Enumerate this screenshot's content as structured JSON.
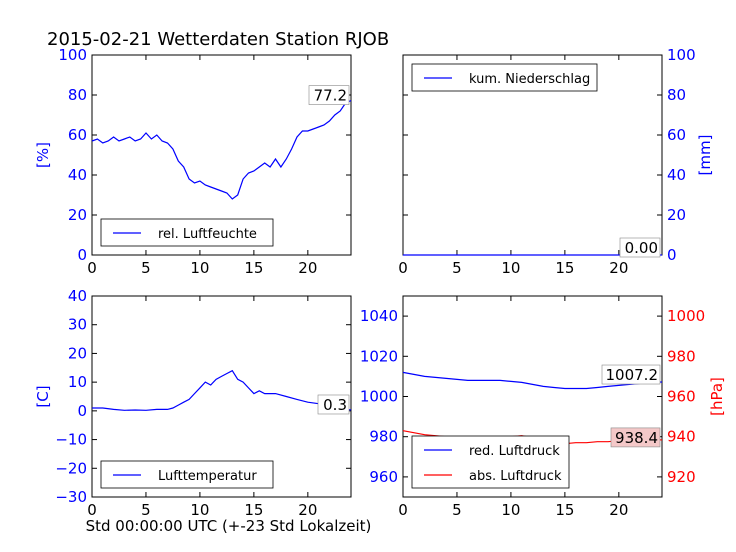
{
  "title": "2015-02-21 Wetterdaten Station RJOB",
  "colors": {
    "blue": "#0000ff",
    "red": "#ff0000",
    "annoBg": "#ffffff",
    "annoBgRed": "#f4c8c8"
  },
  "chart_data": [
    {
      "type": "line",
      "name": "humidity",
      "xlim": [
        0,
        24
      ],
      "ylim": [
        0,
        100
      ],
      "xticks": [
        "0",
        "5",
        "10",
        "15",
        "20"
      ],
      "xtick_values": [
        0,
        5,
        10,
        15,
        20
      ],
      "yticks": [
        "0",
        "20",
        "40",
        "60",
        "80",
        "100"
      ],
      "ytick_values": [
        0,
        20,
        40,
        60,
        80,
        100
      ],
      "ylabel": "[%]",
      "ylabel_side": "left",
      "ytick_color": "#0000ff",
      "legend": "top-none",
      "legend_placement": "lower-left",
      "annotation": "77.2",
      "series": [
        {
          "name": "rel. Luftfeuchte",
          "color": "#0000ff",
          "x": [
            0,
            0.5,
            1,
            1.5,
            2,
            2.5,
            3,
            3.5,
            4,
            4.5,
            5,
            5.5,
            6,
            6.5,
            7,
            7.5,
            8,
            8.5,
            9,
            9.5,
            10,
            10.5,
            11,
            11.5,
            12,
            12.5,
            13,
            13.5,
            14,
            14.5,
            15,
            15.5,
            16,
            16.5,
            17,
            17.5,
            18,
            18.5,
            19,
            19.5,
            20,
            20.5,
            21,
            21.5,
            22,
            22.5,
            23,
            23.5,
            24
          ],
          "y": [
            57,
            58,
            56,
            57,
            59,
            57,
            58,
            59,
            57,
            58,
            61,
            58,
            60,
            57,
            56,
            53,
            47,
            44,
            38,
            36,
            37,
            35,
            34,
            33,
            32,
            31,
            28,
            30,
            38,
            41,
            42,
            44,
            46,
            44,
            48,
            44,
            48,
            53,
            59,
            62,
            62,
            63,
            64,
            65,
            67,
            70,
            72,
            76,
            77.2
          ]
        }
      ]
    },
    {
      "type": "line",
      "name": "precipitation",
      "xlim": [
        0,
        24
      ],
      "ylim": [
        0,
        100
      ],
      "xticks": [
        "0",
        "5",
        "10",
        "15",
        "20"
      ],
      "xtick_values": [
        0,
        5,
        10,
        15,
        20
      ],
      "yticks": [
        "0",
        "20",
        "40",
        "60",
        "80",
        "100"
      ],
      "ytick_values": [
        0,
        20,
        40,
        60,
        80,
        100
      ],
      "ylabel": "[mm]",
      "ylabel_side": "right",
      "ytick_color": "#0000ff",
      "legend_placement": "upper-left",
      "annotation": "0.00",
      "series": [
        {
          "name": "kum. Niederschlag",
          "color": "#0000ff",
          "x": [
            0,
            24
          ],
          "y": [
            0,
            0
          ]
        }
      ]
    },
    {
      "type": "line",
      "name": "temperature",
      "xlim": [
        0,
        24
      ],
      "ylim": [
        -30,
        40
      ],
      "xticks": [
        "0",
        "5",
        "10",
        "15",
        "20"
      ],
      "xtick_values": [
        0,
        5,
        10,
        15,
        20
      ],
      "yticks": [
        "−30",
        "−20",
        "−10",
        "0",
        "10",
        "20",
        "30",
        "40"
      ],
      "ytick_values": [
        -30,
        -20,
        -10,
        0,
        10,
        20,
        30,
        40
      ],
      "ylabel": "[C]",
      "ylabel_side": "left",
      "ytick_color": "#0000ff",
      "xlabel": "Std 00:00:00 UTC (+-23 Std Lokalzeit)",
      "legend_placement": "lower-left",
      "annotation": "0.3",
      "series": [
        {
          "name": "Lufttemperatur",
          "color": "#0000ff",
          "x": [
            0,
            1,
            2,
            3,
            4,
            5,
            6,
            7,
            7.5,
            8,
            8.5,
            9,
            9.5,
            10,
            10.5,
            11,
            11.5,
            12,
            12.5,
            13,
            13.5,
            14,
            14.5,
            15,
            15.5,
            16,
            17,
            18,
            19,
            20,
            21,
            22,
            23,
            24
          ],
          "y": [
            1,
            1,
            0.5,
            0.2,
            0.3,
            0.2,
            0.5,
            0.5,
            1,
            2,
            3,
            4,
            6,
            8,
            10,
            9,
            11,
            12,
            13,
            14,
            11,
            10,
            8,
            6,
            7,
            6,
            6,
            5,
            4,
            3,
            2.5,
            2,
            1,
            0.3
          ]
        }
      ]
    },
    {
      "type": "line",
      "name": "pressure",
      "xlim": [
        0,
        24
      ],
      "ylim": [
        950,
        1050
      ],
      "y2lim": [
        910,
        1010
      ],
      "xticks": [
        "0",
        "5",
        "10",
        "15",
        "20"
      ],
      "xtick_values": [
        0,
        5,
        10,
        15,
        20
      ],
      "yticks": [
        "960",
        "980",
        "1000",
        "1020",
        "1040"
      ],
      "ytick_values": [
        960,
        980,
        1000,
        1020,
        1040
      ],
      "y2ticks": [
        "920",
        "940",
        "960",
        "980",
        "1000"
      ],
      "y2tick_values": [
        920,
        940,
        960,
        980,
        1000
      ],
      "ylabel": "",
      "y2label": "[hPa]",
      "ytick_color": "#0000ff",
      "y2tick_color": "#ff0000",
      "legend_placement": "lower-center",
      "annotations": [
        "1007.2",
        "938.4"
      ],
      "series": [
        {
          "name": "red. Luftdruck",
          "color": "#0000ff",
          "axis": "left",
          "x": [
            0,
            1,
            2,
            3,
            4,
            5,
            6,
            7,
            8,
            9,
            10,
            11,
            12,
            13,
            14,
            15,
            16,
            17,
            18,
            19,
            20,
            21,
            22,
            23,
            24
          ],
          "y": [
            1012,
            1011,
            1010,
            1009.5,
            1009,
            1008.5,
            1008,
            1008,
            1008,
            1008,
            1007.5,
            1007,
            1006,
            1005,
            1004.5,
            1004,
            1004,
            1004,
            1004.5,
            1005,
            1005.5,
            1006,
            1006.5,
            1007,
            1007.2
          ]
        },
        {
          "name": "abs. Luftdruck",
          "color": "#ff0000",
          "axis": "right",
          "x": [
            0,
            1,
            2,
            3,
            4,
            5,
            6,
            7,
            8,
            9,
            10,
            11,
            12,
            13,
            14,
            15,
            16,
            17,
            18,
            19,
            20,
            21,
            22,
            23,
            24
          ],
          "y": [
            943,
            942,
            941,
            940.5,
            940,
            940,
            939.5,
            939.5,
            940,
            940,
            940,
            940.5,
            939.5,
            938.5,
            937,
            936.5,
            937,
            937,
            937.5,
            937.5,
            938,
            938,
            938,
            938.4,
            938.4
          ]
        }
      ]
    }
  ]
}
